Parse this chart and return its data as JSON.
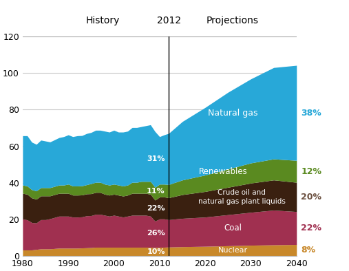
{
  "title_history": "History",
  "title_year": "2012",
  "title_projections": "Projections",
  "xlim": [
    1980,
    2040
  ],
  "ylim": [
    0,
    120
  ],
  "yticks": [
    0,
    20,
    40,
    60,
    80,
    100,
    120
  ],
  "xticks": [
    1980,
    1990,
    2000,
    2010,
    2020,
    2030,
    2040
  ],
  "colors": {
    "nuclear": "#c8882a",
    "coal": "#a03050",
    "crude_oil": "#3a2010",
    "renewables": "#5a8a20",
    "natural_gas": "#28a8d8"
  },
  "label_colors": {
    "natural_gas_pct": "#28a8d8",
    "renewables_pct": "#5a8a20",
    "crude_oil_pct": "#6b5040",
    "coal_pct": "#a03050",
    "nuclear_pct": "#c8882a"
  },
  "history_labels": {
    "crude_oil_pct": "22%"
  },
  "projection_pcts": {
    "natural_gas": "38%",
    "renewables": "12%",
    "crude_oil": "20%",
    "coal": "22%",
    "nuclear": "8%"
  },
  "years_history": [
    1980,
    1981,
    1982,
    1983,
    1984,
    1985,
    1986,
    1987,
    1988,
    1989,
    1990,
    1991,
    1992,
    1993,
    1994,
    1995,
    1996,
    1997,
    1998,
    1999,
    2000,
    2001,
    2002,
    2003,
    2004,
    2005,
    2006,
    2007,
    2008,
    2009,
    2010,
    2011,
    2012
  ],
  "years_projection": [
    2012,
    2015,
    2020,
    2025,
    2030,
    2035,
    2040
  ],
  "nuclear_hist": [
    3.2,
    3.2,
    3.2,
    3.5,
    3.8,
    3.8,
    3.8,
    4.0,
    4.2,
    4.2,
    4.2,
    4.2,
    4.2,
    4.3,
    4.4,
    4.5,
    4.7,
    4.7,
    4.7,
    4.7,
    4.7,
    4.7,
    4.7,
    4.7,
    4.7,
    4.7,
    4.7,
    4.7,
    4.7,
    4.5,
    4.7,
    4.7,
    4.8
  ],
  "coal_hist": [
    17,
    16.5,
    15,
    14.5,
    16,
    16,
    16.5,
    17,
    17.5,
    17.5,
    17.5,
    17,
    17,
    17,
    17.5,
    17.5,
    18,
    18,
    17.5,
    17,
    17.5,
    17,
    16.5,
    17,
    17.5,
    17.5,
    17.5,
    17.5,
    17,
    14.5,
    15.5,
    15.5,
    15
  ],
  "crude_hist": [
    14,
    14,
    13.5,
    13,
    13,
    13,
    12.5,
    12.5,
    12.5,
    12.5,
    12.5,
    12,
    12,
    12,
    12,
    12,
    12,
    12,
    11.5,
    11.5,
    11.5,
    11.5,
    11.5,
    11.5,
    12,
    12,
    12,
    12,
    12,
    11.5,
    12,
    12,
    12
  ],
  "renewables_hist": [
    4.5,
    4.5,
    4.5,
    4.5,
    4.5,
    4.5,
    4.5,
    4.5,
    4.5,
    4.5,
    5.0,
    5.0,
    5.0,
    5.0,
    5.0,
    5.5,
    5.5,
    5.5,
    5.5,
    5.5,
    5.5,
    5.5,
    5.5,
    5.5,
    6.0,
    6.0,
    6.5,
    6.5,
    7.0,
    7.0,
    7.0,
    7.0,
    7.2
  ],
  "natgas_hist": [
    27,
    27.5,
    26,
    25.5,
    26,
    25.5,
    25,
    25.5,
    26,
    26.5,
    27,
    27,
    27.5,
    27.5,
    28,
    28,
    28.5,
    28.5,
    29,
    29,
    29.5,
    29,
    29.5,
    29.5,
    30,
    30,
    30,
    30.5,
    31,
    30.5,
    26,
    27,
    28
  ],
  "nuclear_proj": [
    4.8,
    5.0,
    5.2,
    5.5,
    5.8,
    6.0,
    6.2
  ],
  "coal_proj": [
    15,
    15.5,
    16,
    17,
    18,
    19,
    18
  ],
  "crude_proj": [
    12,
    13,
    14,
    15,
    16,
    16.5,
    16
  ],
  "renewables_proj": [
    7.2,
    8.0,
    9.0,
    10,
    11,
    11.5,
    12
  ],
  "natgas_proj": [
    28,
    32,
    37,
    42,
    46,
    50,
    52
  ]
}
